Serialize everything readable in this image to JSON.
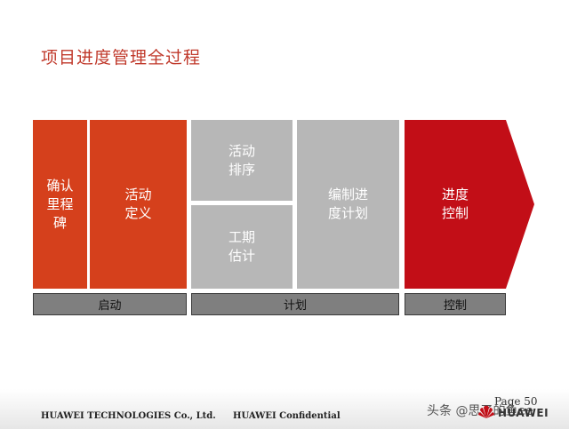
{
  "title": "项目进度管理全过程",
  "blocks": {
    "b1": "确认\n里程\n碑",
    "b2": "活动\n定义",
    "b3": "活动\n排序",
    "b4": "工期\n估计",
    "b5": "编制进\n度计划",
    "b6": "进度\n控制"
  },
  "phases": {
    "start": "启动",
    "plan": "计划",
    "control": "控制"
  },
  "footer": {
    "company": "HUAWEI TECHNOLOGIES Co., Ltd.",
    "confidential": "HUAWEI Confidential",
    "page": "Page 50",
    "watermark": "头条 @思了的鱼ee",
    "logo": "HUAWEI"
  },
  "colors": {
    "title": "#c0392b",
    "start_blocks": "#d5401c",
    "plan_blocks": "#b7b7b7",
    "control_block": "#c20e17",
    "phase_bar": "#7f7f7f"
  }
}
